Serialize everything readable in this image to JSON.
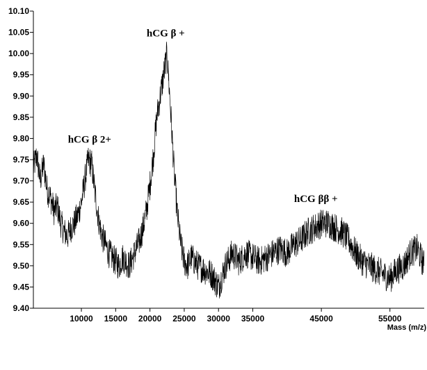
{
  "chart_data": {
    "type": "line",
    "title": "",
    "xlabel": "Mass (m/z)",
    "ylabel": "",
    "xlim": [
      3000,
      60000
    ],
    "ylim": [
      9.4,
      10.1
    ],
    "grid": false,
    "legend": "none",
    "x_ticks": [
      10000,
      15000,
      20000,
      25000,
      30000,
      35000,
      45000,
      55000
    ],
    "x_tick_labels": [
      "10000",
      "15000",
      "20000",
      "25000",
      "30000",
      "35000",
      "45000",
      "55000"
    ],
    "y_ticks": [
      9.4,
      9.45,
      9.5,
      9.55,
      9.6,
      9.65,
      9.7,
      9.75,
      9.8,
      9.85,
      9.9,
      9.95,
      10.0,
      10.05,
      10.1
    ],
    "y_tick_labels": [
      "9.40",
      "9.45",
      "9.50",
      "9.55",
      "9.60",
      "9.65",
      "9.70",
      "9.75",
      "9.80",
      "9.85",
      "9.90",
      "9.95",
      "10.00",
      "10.05",
      "10.10"
    ],
    "series": [
      {
        "line_color": "#000000",
        "x": [
          3000,
          3500,
          4000,
          4500,
          5000,
          5500,
          6000,
          6500,
          7000,
          7500,
          8000,
          8500,
          9000,
          9500,
          10000,
          10500,
          11000,
          11500,
          12000,
          12500,
          13000,
          13500,
          14000,
          14500,
          15000,
          15500,
          16000,
          16500,
          17000,
          17500,
          18000,
          18500,
          19000,
          19500,
          20000,
          20500,
          21000,
          21500,
          22000,
          22500,
          23000,
          23500,
          24000,
          24500,
          25000,
          25500,
          26000,
          27000,
          28000,
          29000,
          30000,
          31000,
          32000,
          33000,
          34000,
          35000,
          36000,
          37000,
          38000,
          39000,
          40000,
          41000,
          42000,
          43000,
          44000,
          45000,
          46000,
          47000,
          48000,
          49000,
          50000,
          51000,
          52000,
          53000,
          54000,
          55000,
          56000,
          57000,
          58000,
          59000,
          60000
        ],
        "y": [
          9.73,
          9.76,
          9.7,
          9.74,
          9.68,
          9.66,
          9.63,
          9.64,
          9.6,
          9.58,
          9.57,
          9.59,
          9.6,
          9.62,
          9.65,
          9.7,
          9.75,
          9.74,
          9.67,
          9.61,
          9.57,
          9.55,
          9.53,
          9.52,
          9.51,
          9.5,
          9.52,
          9.51,
          9.5,
          9.52,
          9.54,
          9.56,
          9.59,
          9.63,
          9.69,
          9.76,
          9.85,
          9.9,
          9.95,
          10.0,
          9.87,
          9.73,
          9.62,
          9.55,
          9.51,
          9.5,
          9.52,
          9.5,
          9.49,
          9.48,
          9.45,
          9.5,
          9.53,
          9.51,
          9.53,
          9.52,
          9.51,
          9.52,
          9.53,
          9.54,
          9.53,
          9.55,
          9.56,
          9.58,
          9.59,
          9.6,
          9.6,
          9.59,
          9.58,
          9.56,
          9.53,
          9.51,
          9.5,
          9.49,
          9.48,
          9.47,
          9.49,
          9.5,
          9.53,
          9.54,
          9.5
        ]
      }
    ],
    "annotations": [
      {
        "text": "hCG β 2+",
        "x": 11200,
        "y": 9.79
      },
      {
        "text": "hCG β +",
        "x": 22300,
        "y": 10.04
      },
      {
        "text": "hCG ββ +",
        "x": 44200,
        "y": 9.65
      }
    ]
  }
}
